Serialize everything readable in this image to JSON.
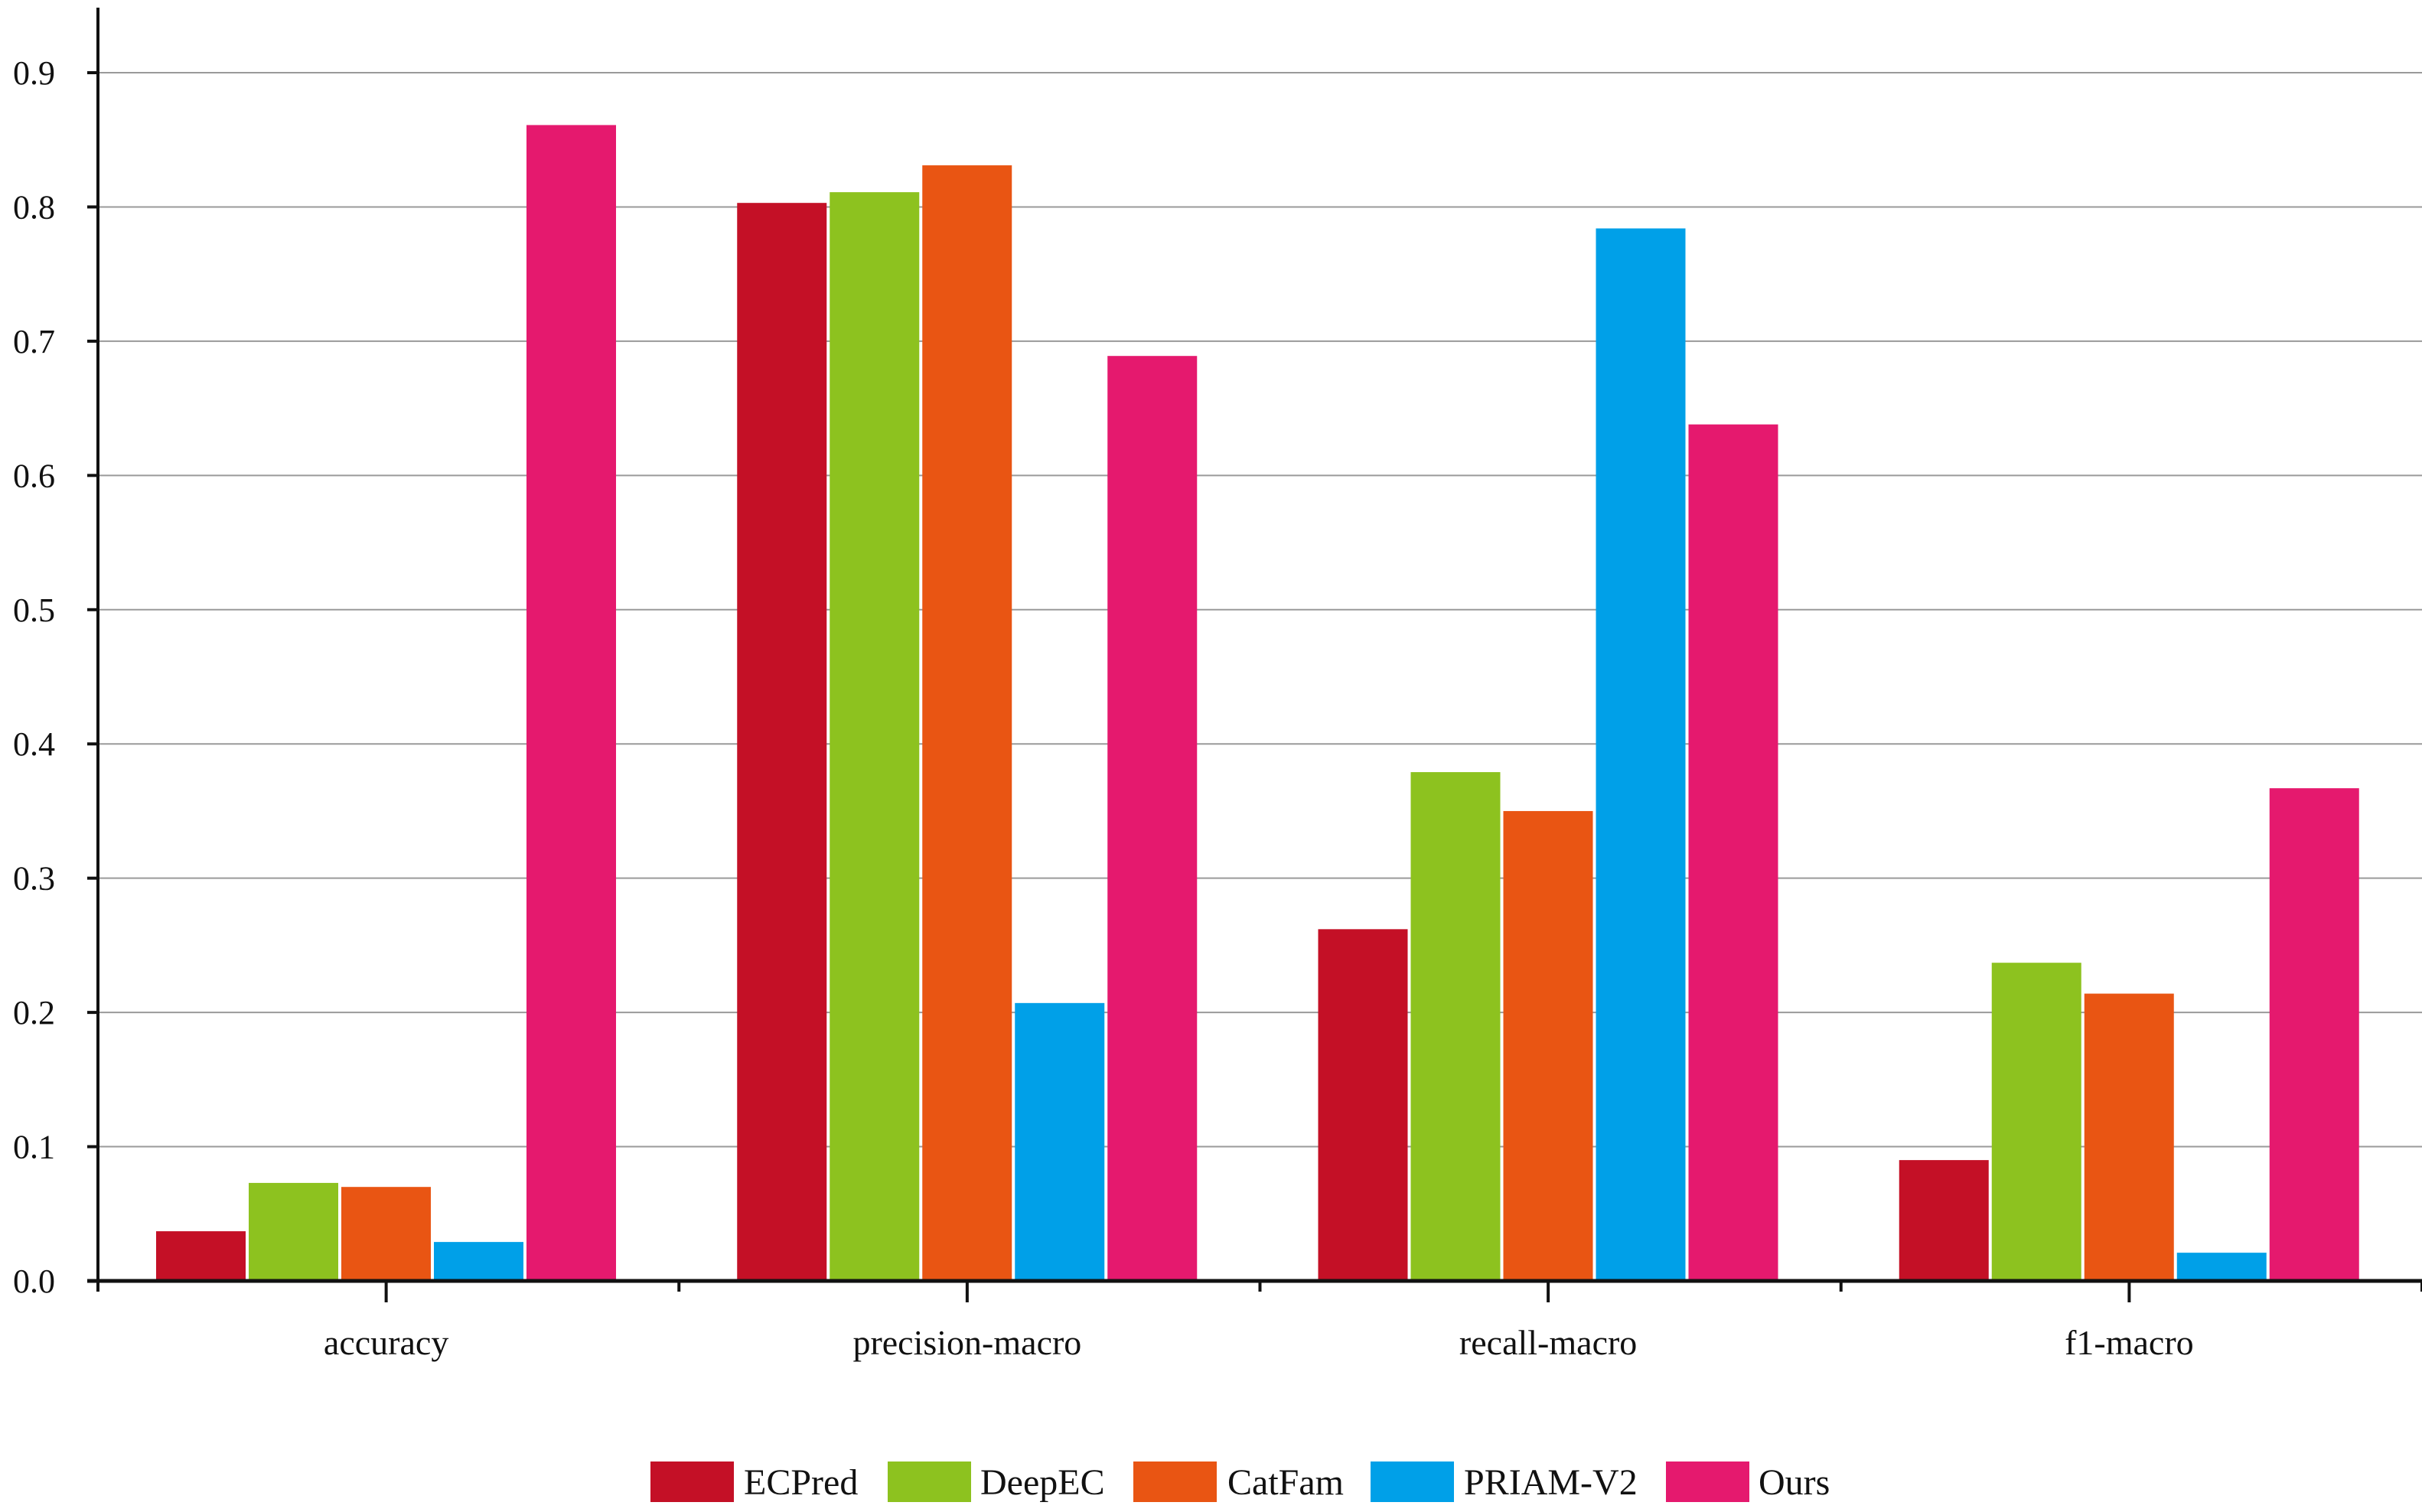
{
  "chart_data": {
    "type": "bar",
    "title": "",
    "xlabel": "",
    "ylabel": "",
    "categories": [
      "accuracy",
      "precision-macro",
      "recall-macro",
      "f1-macro"
    ],
    "series": [
      {
        "name": "ECPred",
        "color": "#c41026",
        "values": [
          0.037,
          0.803,
          0.262,
          0.09
        ]
      },
      {
        "name": "DeepEC",
        "color": "#8dc21f",
        "values": [
          0.073,
          0.811,
          0.379,
          0.237
        ]
      },
      {
        "name": "CatFam",
        "color": "#e95513",
        "values": [
          0.07,
          0.831,
          0.35,
          0.214
        ]
      },
      {
        "name": "PRIAM-V2",
        "color": "#00a0e8",
        "values": [
          0.029,
          0.207,
          0.784,
          0.021
        ]
      },
      {
        "name": "Ours",
        "color": "#e5196e",
        "values": [
          0.861,
          0.689,
          0.638,
          0.367
        ]
      }
    ],
    "ylim": [
      0,
      0.9
    ],
    "yticks": [
      "0.0",
      "0.1",
      "0.2",
      "0.3",
      "0.4",
      "0.5",
      "0.6",
      "0.7",
      "0.8",
      "0.9"
    ],
    "grid": true,
    "legend_position": "bottom-center"
  }
}
